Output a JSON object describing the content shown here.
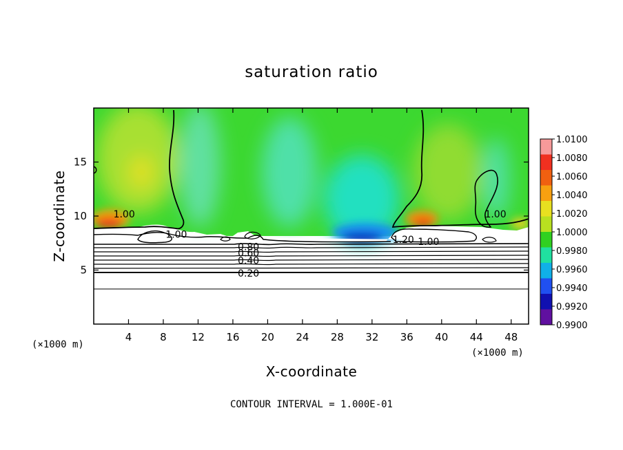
{
  "chart_data": {
    "type": "heatmap",
    "title": "saturation ratio",
    "xlabel": "X-coordinate",
    "ylabel": "Z-coordinate",
    "x_unit_label": "(×1000 m)",
    "x_unit_label_right": "(×1000 m)",
    "xlim": [
      0,
      50
    ],
    "ylim": [
      0,
      20
    ],
    "x_ticks": [
      4,
      8,
      12,
      16,
      20,
      24,
      28,
      32,
      36,
      40,
      44,
      48
    ],
    "y_ticks": [
      5,
      10,
      15
    ],
    "colorbar": {
      "labels": [
        "1.0100",
        "1.0080",
        "1.0060",
        "1.0040",
        "1.0020",
        "1.0000",
        "0.9980",
        "0.9960",
        "0.9940",
        "0.9920",
        "0.9900"
      ],
      "colors": [
        "#f79a9a",
        "#f03020",
        "#f06010",
        "#f7a010",
        "#e8e020",
        "#b8e020",
        "#30d020",
        "#20e0a0",
        "#10b0e8",
        "#2050f0",
        "#1010b0",
        "#6010a0"
      ]
    },
    "contour_labels": [
      {
        "text": "1.00",
        "x": 3.5,
        "y": 10.2
      },
      {
        "text": "1.00",
        "x": 9.5,
        "y": 8.3
      },
      {
        "text": "0.80",
        "x": 17.8,
        "y": 7.15
      },
      {
        "text": "0.60",
        "x": 17.8,
        "y": 6.6
      },
      {
        "text": "0.40",
        "x": 17.8,
        "y": 5.9
      },
      {
        "text": "0.20",
        "x": 17.8,
        "y": 4.7
      },
      {
        "text": "1.20",
        "x": 35.6,
        "y": 7.85
      },
      {
        "text": "1.00",
        "x": 38.5,
        "y": 7.65
      },
      {
        "text": "1.00",
        "x": 46.2,
        "y": 10.2
      }
    ],
    "note": "CONTOUR INTERVAL = 1.000E-01"
  }
}
